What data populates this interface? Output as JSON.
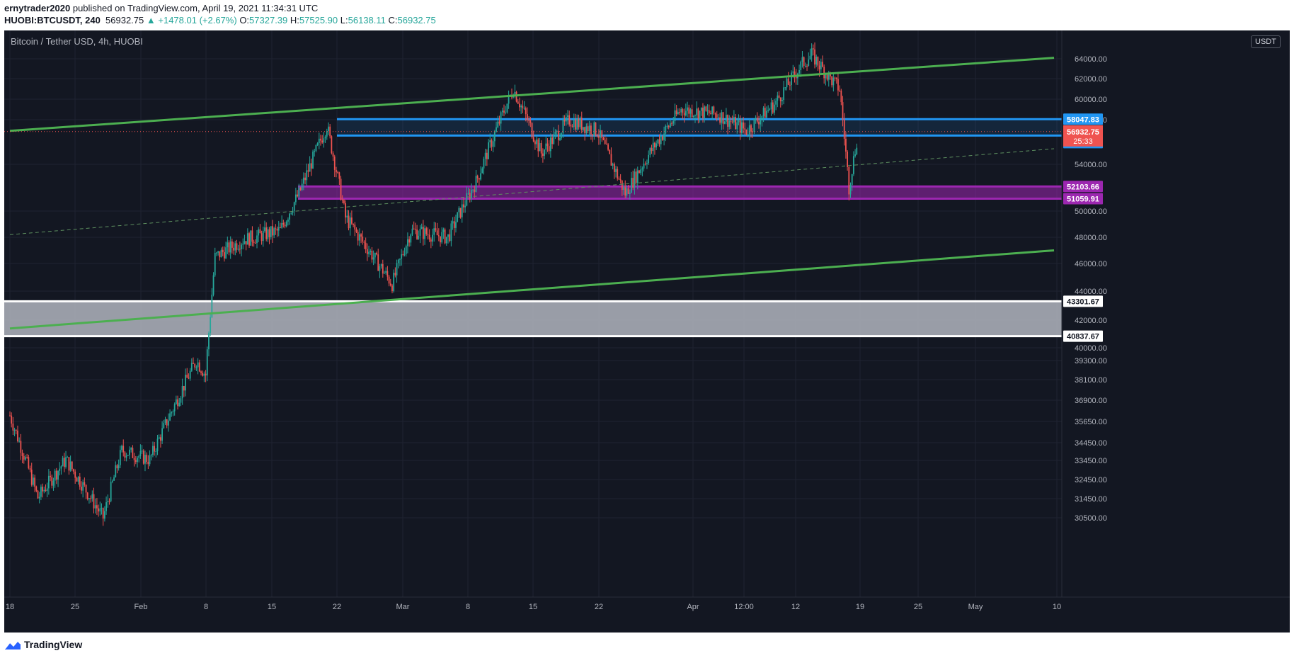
{
  "header": {
    "author": "ernytrader2020",
    "published_text": " published on TradingView.com, April 19, 2021 11:34:31 UTC",
    "symbol": "HUOBI:BTCUSDT, 240",
    "last": "56932.75",
    "change": "+1478.01 (+2.67%)",
    "open_label": "O:",
    "open": "57327.39",
    "high_label": "H:",
    "high": "57525.90",
    "low_label": "L:",
    "low": "56138.11",
    "close_label": "C:",
    "close": "56932.75"
  },
  "chart": {
    "title": "Bitcoin / Tether USD, 4h, HUOBI",
    "currency": "USDT",
    "countdown": "25:33"
  },
  "footer": {
    "logo_text": "TradingView"
  },
  "colors": {
    "background": "#131722",
    "grid": "#1f2331",
    "up": "#26a69a",
    "down": "#ef5350",
    "channel": "#4caf50",
    "blue_zone": "#2196f3",
    "purple_zone": "#9c27b0",
    "white_zone": "#ffffff"
  },
  "chart_data": {
    "type": "candlestick",
    "title": "Bitcoin / Tether USD, 4h, HUOBI",
    "y_ticks": [
      "64000.00",
      "62000.00",
      "60000.00",
      "58000.00",
      "54000.00",
      "50000.00",
      "48000.00",
      "46000.00",
      "44000.00",
      "42000.00",
      "40000.00",
      "39300.00",
      "38100.00",
      "36900.00",
      "35650.00",
      "34450.00",
      "33450.00",
      "32450.00",
      "31450.00",
      "30500.00"
    ],
    "x_ticks": [
      "18",
      "25",
      "Feb",
      "8",
      "15",
      "22",
      "Mar",
      "8",
      "15",
      "22",
      "Apr",
      "12:00",
      "12",
      "19",
      "25",
      "May",
      "10"
    ],
    "price_labels": [
      "58047.83",
      "56578.37",
      "52103.66",
      "51059.91",
      "43301.67",
      "40837.67"
    ],
    "current_price": "56932.75",
    "zones": [
      {
        "name": "resistance-zone",
        "color": "blue",
        "from": 56578.37,
        "to": 58047.83
      },
      {
        "name": "support-zone",
        "color": "purple",
        "from": 51059.91,
        "to": 52103.66
      },
      {
        "name": "demand-zone",
        "color": "white",
        "from": 40837.67,
        "to": 43301.67
      }
    ],
    "channel": [
      {
        "name": "upper",
        "from": [
          "2021-01-18",
          57000
        ],
        "to": [
          "2021-05-10",
          64100
        ]
      },
      {
        "name": "lower",
        "from": [
          "2021-01-18",
          41400
        ],
        "to": [
          "2021-05-10",
          47000
        ]
      },
      {
        "name": "mid",
        "from": [
          "2021-01-18",
          48200
        ],
        "to": [
          "2021-05-10",
          55400
        ]
      }
    ],
    "price_path": [
      [
        "2021-01-18",
        36000
      ],
      [
        "2021-01-21",
        31500
      ],
      [
        "2021-01-24",
        33500
      ],
      [
        "2021-01-28",
        30500
      ],
      [
        "2021-01-30",
        34000
      ],
      [
        "2021-02-02",
        33500
      ],
      [
        "2021-02-05",
        37000
      ],
      [
        "2021-02-07",
        39300
      ],
      [
        "2021-02-08",
        38400
      ],
      [
        "2021-02-09",
        46500
      ],
      [
        "2021-02-12",
        47800
      ],
      [
        "2021-02-16",
        48500
      ],
      [
        "2021-02-18",
        51500
      ],
      [
        "2021-02-21",
        57500
      ],
      [
        "2021-02-22",
        53500
      ],
      [
        "2021-02-23",
        49500
      ],
      [
        "2021-02-26",
        46500
      ],
      [
        "2021-02-28",
        44500
      ],
      [
        "2021-03-02",
        48500
      ],
      [
        "2021-03-06",
        48000
      ],
      [
        "2021-03-09",
        52500
      ],
      [
        "2021-03-13",
        61000
      ],
      [
        "2021-03-16",
        55000
      ],
      [
        "2021-03-19",
        58000
      ],
      [
        "2021-03-22",
        57000
      ],
      [
        "2021-03-25",
        51500
      ],
      [
        "2021-03-28",
        55500
      ],
      [
        "2021-03-31",
        59000
      ],
      [
        "2021-04-04",
        58500
      ],
      [
        "2021-04-07",
        57000
      ],
      [
        "2021-04-10",
        59500
      ],
      [
        "2021-04-13",
        63500
      ],
      [
        "2021-04-14",
        64400
      ],
      [
        "2021-04-16",
        62000
      ],
      [
        "2021-04-17",
        61000
      ],
      [
        "2021-04-18",
        52000
      ],
      [
        "2021-04-19",
        56932.75
      ]
    ]
  }
}
